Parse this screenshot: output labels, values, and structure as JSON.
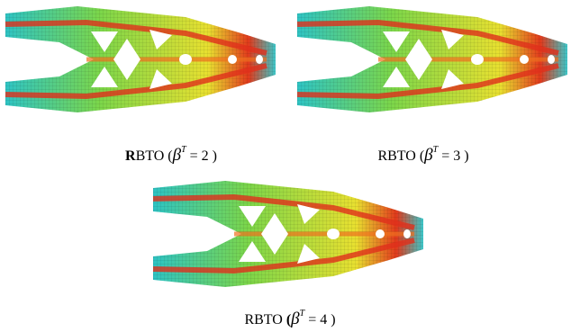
{
  "panels": [
    {
      "initial": "R",
      "label": "BTO",
      "open": "(",
      "symbol": "β",
      "superscript": "T",
      "equation": "= 2 )"
    },
    {
      "initial": "R",
      "label": "BTO",
      "open": "(",
      "symbol": "β",
      "superscript": "T",
      "equation": "= 3 )"
    },
    {
      "initial": "R",
      "label": "BTO",
      "open": "(",
      "symbol": "β",
      "superscript": "T",
      "equation": "= 4 )"
    }
  ]
}
